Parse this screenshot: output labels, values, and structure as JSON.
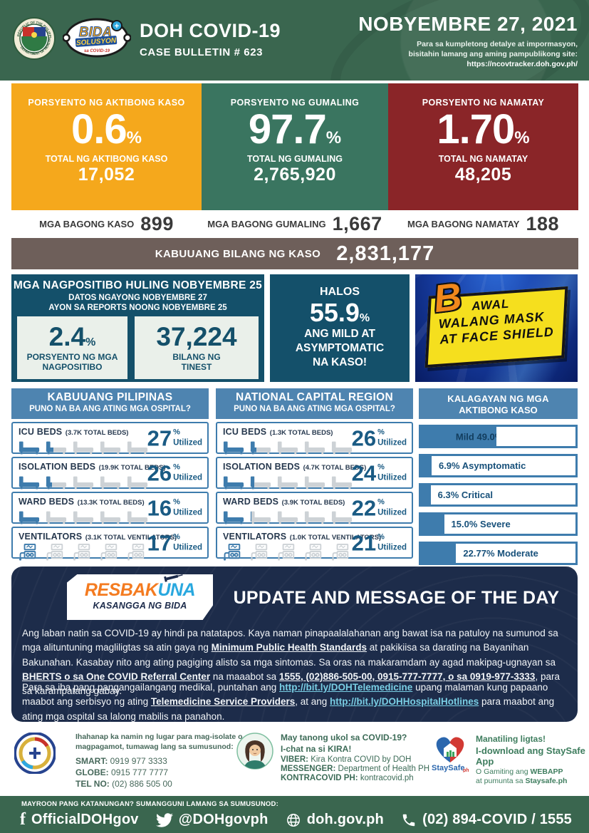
{
  "misc": {
    "percent_sign": "%"
  },
  "header": {
    "title": "DOH COVID-19",
    "subtitle": "CASE BULLETIN # 623",
    "date": "NOBYEMBRE 27, 2021",
    "note_line1": "Para sa kumpletong detalye at impormasyon,",
    "note_line2": "bisitahin lamang ang aming pampublikong site:",
    "note_line3": "https://ncovtracker.doh.gov.ph/",
    "logos": {
      "seal_top": "REPUBLIC OF THE PHILIPPINES",
      "seal_bottom": "DEPARTMENT OF HEALTH",
      "bida": "BIDA",
      "bida_plus": "+",
      "solusyon": "SOLUSYON",
      "sa_covid": "sa COVID-19"
    },
    "green": "#3A664F"
  },
  "stat_cards": [
    {
      "label": "PORSYENTO NG AKTIBONG KASO",
      "percent": "0.6",
      "total_label": "TOTAL NG AKTIBONG KASO",
      "total": "17,052",
      "color": "#F5A81C",
      "new_label": "MGA BAGONG KASO",
      "new_value": "899"
    },
    {
      "label": "PORSYENTO NG GUMALING",
      "percent": "97.7",
      "total_label": "TOTAL NG GUMALING",
      "total": "2,765,920",
      "color": "#3A7560",
      "new_label": "MGA BAGONG GUMALING",
      "new_value": "1,667"
    },
    {
      "label": "PORSYENTO NG NAMATAY",
      "percent": "1.70",
      "total_label": "TOTAL NG NAMATAY",
      "total": "48,205",
      "color": "#8A2528",
      "new_label": "MGA BAGONG NAMATAY",
      "new_value": "188"
    }
  ],
  "total_bar": {
    "label": "KABUUANG BILANG NG KASO",
    "value": "2,831,177",
    "color": "#6E5F5A"
  },
  "positivity": {
    "title": "MGA NAGPOSITIBO HULING NOBYEMBRE 25",
    "sub1": "DATOS NGAYONG NOBYEMBRE 27",
    "sub2": "AYON SA REPORTS NOONG NOBYEMBRE 25",
    "card1": {
      "value": "2.4",
      "label1": "PORSYENTO NG MGA",
      "label2": "NAGPOSITIBO"
    },
    "card2": {
      "value": "37,224",
      "label1": "BILANG NG",
      "label2": "TINEST"
    }
  },
  "mild_box": {
    "line1": "HALOS",
    "percent": "55.9",
    "line2": "ANG MILD AT",
    "line3": "ASYMPTOMATIC",
    "line4": "NA KASO!"
  },
  "sign": {
    "big_letter": "B",
    "line1_rest": "AWAL",
    "line2": "WALANG MASK",
    "line3": "AT FACE SHIELD",
    "plate_color": "#F5DF1E"
  },
  "hospitals_shared": {
    "utilized_label": "Utilized"
  },
  "hospitals": [
    {
      "title": "KABUUANG PILIPINAS",
      "subtitle": "PUNO NA BA ANG ATING MGA OSPITAL?",
      "rows": [
        {
          "name": "ICU BEDS",
          "detail": "(3.7K TOTAL BEDS)",
          "percent": 27,
          "icon": "bed"
        },
        {
          "name": "ISOLATION BEDS",
          "detail": "(19.9K TOTAL BEDS)",
          "percent": 26,
          "icon": "bed"
        },
        {
          "name": "WARD BEDS",
          "detail": "(13.3K TOTAL BEDS)",
          "percent": 16,
          "icon": "bed"
        },
        {
          "name": "VENTILATORS",
          "detail": "(3.1K TOTAL VENTILATORS)",
          "percent": 17,
          "icon": "vent"
        }
      ]
    },
    {
      "title": "NATIONAL CAPITAL REGION",
      "subtitle": "PUNO NA BA ANG ATING MGA OSPITAL?",
      "rows": [
        {
          "name": "ICU BEDS",
          "detail": "(1.3K TOTAL BEDS)",
          "percent": 26,
          "icon": "bed"
        },
        {
          "name": "ISOLATION BEDS",
          "detail": "(4.7K TOTAL BEDS)",
          "percent": 24,
          "icon": "bed"
        },
        {
          "name": "WARD BEDS",
          "detail": "(3.9K TOTAL BEDS)",
          "percent": 22,
          "icon": "bed"
        },
        {
          "name": "VENTILATORS",
          "detail": "(1.0K TOTAL VENTILATORS)",
          "percent": 21,
          "icon": "vent"
        }
      ]
    }
  ],
  "active_status": {
    "title1": "KALAGAYAN NG MGA",
    "title2": "AKTIBONG KASO",
    "bars": [
      {
        "label": "Mild 49.0%",
        "percent": 49.0,
        "inside": true
      },
      {
        "label": "6.9% Asymptomatic",
        "percent": 6.9
      },
      {
        "label": "6.3% Critical",
        "percent": 6.3
      },
      {
        "label": "15.0% Severe",
        "percent": 15.0
      },
      {
        "label": "22.77% Moderate",
        "percent": 22.77
      }
    ],
    "bar_color": "#3E7CAD"
  },
  "update": {
    "logo": {
      "part1": "RESBAK",
      "part2": "UNA",
      "tagline": "KASANGGA NG BIDA"
    },
    "title": "UPDATE AND MESSAGE OF THE DAY",
    "para1": [
      {
        "t": "Ang laban natin sa COVID-19 ay hindi pa natatapos. Kaya naman pinapaalalahanan ang bawat isa na patuloy na sumunod sa mga alituntuning magliligtas sa atin gaya ng "
      },
      {
        "t": "Minimum Public Health Standards",
        "s": "bu"
      },
      {
        "t": " at pakikiisa sa darating na Bayanihan Bakunahan. Kasabay nito ang ating pagiging alisto sa mga sintomas. Sa oras na makaramdam ay agad makipag-ugnayan sa "
      },
      {
        "t": "BHERTS o sa One COVID Referral Center",
        "s": "bu"
      },
      {
        "t": " na maaabot sa "
      },
      {
        "t": "1555, (02)886-505-00, 0915-777-7777, o sa 0919-977-3333",
        "s": "bu"
      },
      {
        "t": ", para sa karampatang gabay."
      }
    ],
    "para2": [
      {
        "t": "Para sa iba pang pangangailangang medikal, puntahan ang "
      },
      {
        "t": "http://bit.ly/DOHTelemedicine",
        "s": "lbu"
      },
      {
        "t": " upang malaman kung papaano maabot ang serbisyo ng ating "
      },
      {
        "t": "Telemedicine Service Providers",
        "s": "bu"
      },
      {
        "t": ", at ang "
      },
      {
        "t": "http://bit.ly/DOHHospitalHotlines",
        "s": "lbu"
      },
      {
        "t": " para maabot ang ating mga ospital sa lalong mabilis na panahon."
      }
    ]
  },
  "contacts": {
    "one_hospital": {
      "intro1": "Ihahanap ka namin ng lugar para mag-isolate o",
      "intro2": "magpagamot, tumawag lang sa sumusunod:",
      "lines": [
        {
          "label": "SMART:",
          "value": "0919 977 3333"
        },
        {
          "label": "GLOBE:",
          "value": "0915 777 7777"
        },
        {
          "label": "TEL NO:",
          "value": "(02) 886 505 00"
        }
      ]
    },
    "kira": {
      "intro1": "May tanong ukol sa COVID-19?",
      "intro2": "I-chat na si KIRA!",
      "lines": [
        {
          "label": "VIBER:",
          "value": "Kira Kontra COVID by DOH"
        },
        {
          "label": "MESSENGER:",
          "value": "Department of Health PH"
        },
        {
          "label": "KONTRACOVID PH:",
          "value": "kontracovid.ph"
        }
      ]
    },
    "staysafe": {
      "line1": "Manatiling ligtas!",
      "line2": "I-download ang StaySafe App",
      "line3": [
        {
          "t": "O Gamiting ang "
        },
        {
          "t": "WEBAPP",
          "s": "b"
        }
      ],
      "line4": [
        {
          "t": "at pumunta sa "
        },
        {
          "t": "Staysafe.ph",
          "s": "b"
        }
      ],
      "logo_text": "StaySafe",
      "logo_suffix": "ph"
    }
  },
  "bottom_bar": {
    "question": "MAYROON PANG KATANUNGAN? SUMANGGUNI LAMANG SA SUMUSUNOD:",
    "items": [
      {
        "icon": "facebook-icon",
        "label": "OfficialDOHgov"
      },
      {
        "icon": "twitter-icon",
        "label": "@DOHgovph"
      },
      {
        "icon": "globe-icon",
        "label": "doh.gov.ph"
      },
      {
        "icon": "phone-icon",
        "label": "(02) 894-COVID  /  1555"
      }
    ]
  }
}
